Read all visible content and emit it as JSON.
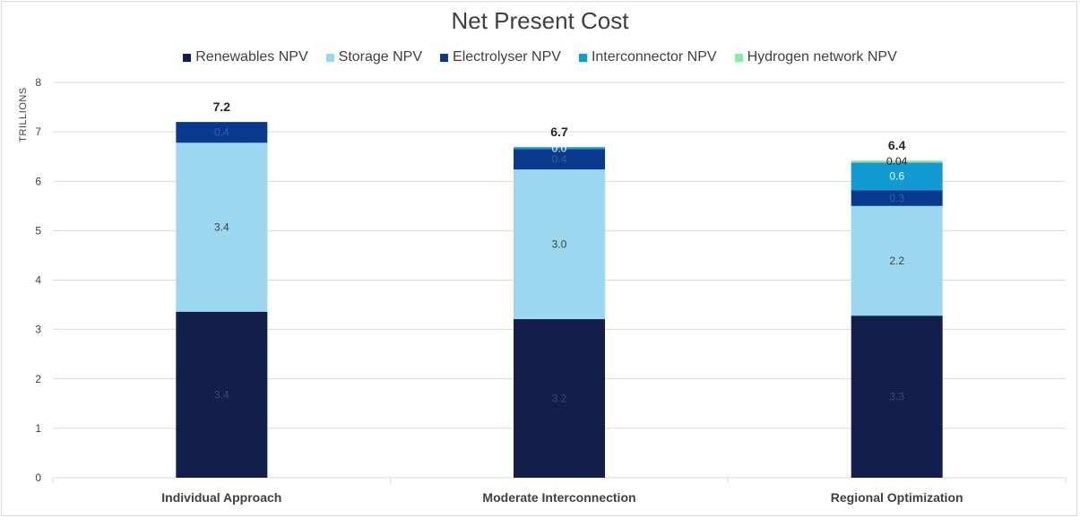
{
  "chart_data": {
    "type": "bar",
    "stacked": true,
    "title": "Net Present Cost",
    "ylabel": "TRILLIONS",
    "xlabel": "",
    "ylim": [
      0,
      8
    ],
    "yticks": [
      0,
      1,
      2,
      3,
      4,
      5,
      6,
      7,
      8
    ],
    "grid": true,
    "legend_position": "top",
    "categories": [
      "Individual Approach",
      "Moderate Interconnection",
      "Regional Optimization"
    ],
    "series": [
      {
        "name": "Renewables NPV",
        "color": "#111f4a",
        "label_color": "#3a4a6a",
        "values": [
          3.36,
          3.21,
          3.28
        ],
        "labels": [
          "3.4",
          "3.2",
          "3.3"
        ]
      },
      {
        "name": "Storage NPV",
        "color": "#9bd8f0",
        "label_color": "#404040",
        "values": [
          3.42,
          3.03,
          2.22
        ],
        "labels": [
          "3.4",
          "3.0",
          "2.2"
        ]
      },
      {
        "name": "Electrolyser NPV",
        "color": "#0a3a8e",
        "label_color": "#3a5ba8",
        "values": [
          0.42,
          0.41,
          0.32
        ],
        "labels": [
          "0.4",
          "0.4",
          "0.3"
        ]
      },
      {
        "name": "Interconnector NPV",
        "color": "#119bd2",
        "label_color": "#ffffff",
        "values": [
          0,
          0.04,
          0.56
        ],
        "labels": [
          "",
          "0.0",
          "0.6"
        ]
      },
      {
        "name": "Hydrogen network NPV",
        "color": "#8ee8a8",
        "label_color": "#262626",
        "values": [
          0,
          0,
          0.04
        ],
        "labels": [
          "",
          "",
          "0.04"
        ]
      }
    ],
    "totals": [
      "7.2",
      "6.7",
      "6.4"
    ]
  }
}
